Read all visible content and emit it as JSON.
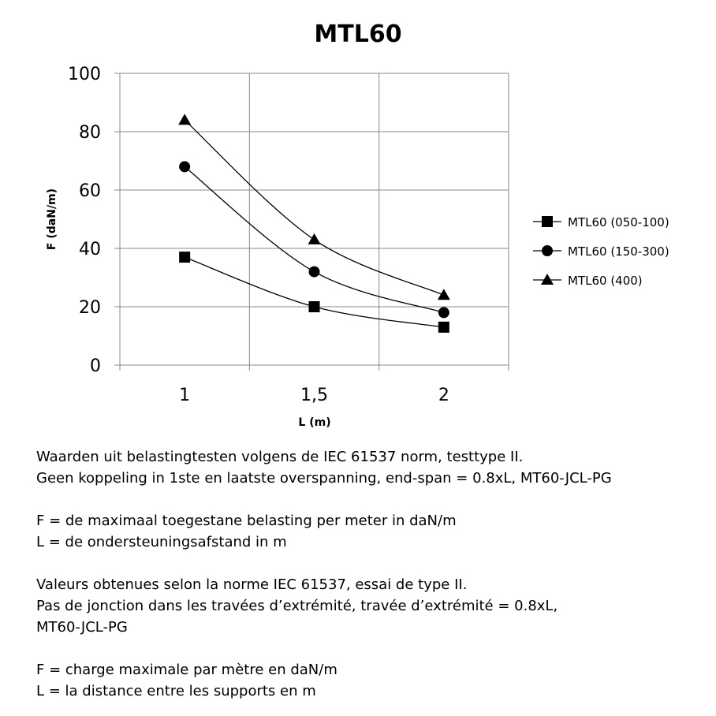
{
  "chart_data": {
    "type": "line",
    "title": "MTL60",
    "xlabel": "L (m)",
    "ylabel": "F (daN/m)",
    "categories": [
      "1",
      "1,5",
      "2"
    ],
    "ylim": [
      0,
      100
    ],
    "yticks": [
      0,
      20,
      40,
      60,
      80,
      100
    ],
    "grid": true,
    "smooth": true,
    "legend": "right",
    "series": [
      {
        "name": "MTL60 (050-100)",
        "marker": "square",
        "values": [
          37,
          20,
          13
        ]
      },
      {
        "name": "MTL60 (150-300)",
        "marker": "circle",
        "values": [
          68,
          32,
          18
        ]
      },
      {
        "name": "MTL60 (400)",
        "marker": "triangle",
        "values": [
          84,
          43,
          24
        ]
      }
    ],
    "colors": {
      "line": "#000000",
      "grid": "#888888"
    }
  },
  "notes": [
    "Waarden uit belastingtesten volgens de IEC 61537 norm, testtype II.",
    "Geen koppeling in 1ste en laatste overspanning, end-span = 0.8xL, MT60-JCL-PG",
    "",
    "F = de maximaal toegestane belasting per meter in daN/m",
    "L = de ondersteuningsafstand in m",
    "",
    "Valeurs obtenues selon la norme IEC 61537, essai de type II.",
    "Pas de jonction dans les travées d’extrémité, travée d’extrémité = 0.8xL,",
    "MT60-JCL-PG",
    "",
    "F = charge maximale par mètre en daN/m",
    "L = la distance entre les supports en m"
  ]
}
